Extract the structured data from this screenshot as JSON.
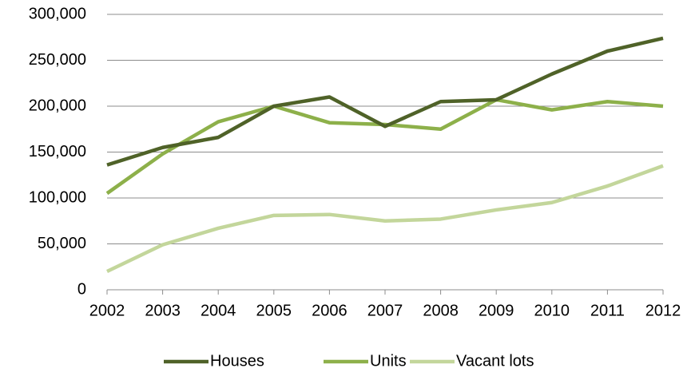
{
  "chart_data": {
    "type": "line",
    "categories": [
      "2002",
      "2003",
      "2004",
      "2005",
      "2006",
      "2007",
      "2008",
      "2009",
      "2010",
      "2011",
      "2012"
    ],
    "series": [
      {
        "name": "Houses",
        "color": "#4f6228",
        "values": [
          136000,
          155000,
          166000,
          200000,
          210000,
          178000,
          205000,
          207000,
          235000,
          260000,
          274000
        ]
      },
      {
        "name": "Units",
        "color": "#8db04a",
        "values": [
          105000,
          148000,
          183000,
          200000,
          182000,
          180000,
          175000,
          207000,
          196000,
          205000,
          200000
        ]
      },
      {
        "name": "Vacant lots",
        "color": "#c3d69b",
        "values": [
          20000,
          49000,
          67000,
          81000,
          82000,
          75000,
          77000,
          87000,
          95000,
          113000,
          135000
        ]
      }
    ],
    "ylim": [
      0,
      300000
    ],
    "yticks": [
      0,
      {
        "value": 50000,
        "label": "50,000"
      },
      {
        "value": 100000,
        "label": "100,000"
      },
      {
        "value": 150000,
        "label": "150,000"
      },
      {
        "value": 200000,
        "label": "200,000"
      },
      {
        "value": 250000,
        "label": "250,000"
      },
      {
        "value": 300000,
        "label": "300,000"
      }
    ],
    "grid": true,
    "legend": "bottom"
  }
}
